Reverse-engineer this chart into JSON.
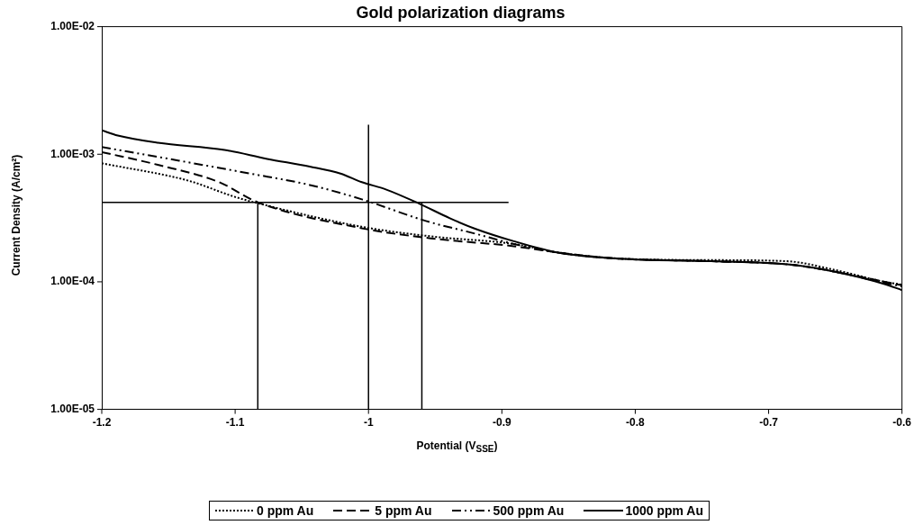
{
  "chart_data": {
    "type": "line",
    "title": "Gold polarization diagrams",
    "xlabel": "Potential (V$_{SSE}$)",
    "ylabel": "Current Density (A/cm²)",
    "log": "y",
    "grid": false,
    "legend": "bottom",
    "marker": "none",
    "xlim": [
      -1.2,
      -0.6
    ],
    "xticks": [
      -1.2,
      -1.1,
      -1,
      -0.9,
      -0.8,
      -0.7,
      -0.6
    ],
    "ylim": [
      1e-05,
      0.01
    ],
    "yticks": [
      {
        "value": 1e-05,
        "label": "1.00E-05"
      },
      {
        "value": 0.0001,
        "label": "1.00E-04"
      },
      {
        "value": 0.001,
        "label": "1.00E-03"
      },
      {
        "value": 0.01,
        "label": "1.00E-02"
      }
    ],
    "series": [
      {
        "name": "0 ppm Au",
        "color": "#000000",
        "line_style": "dotted",
        "x": [
          -1.2,
          -1.135,
          -1.101,
          -1.083,
          -1.005,
          -0.953,
          -0.891,
          -0.857,
          -0.812,
          -0.743,
          -0.686,
          -0.652,
          -0.613,
          -0.6
        ],
        "values": [
          0.00085,
          0.00062,
          0.000466,
          0.000413,
          0.00027,
          0.000227,
          0.000198,
          0.000169,
          0.000152,
          0.000148,
          0.000145,
          0.000125,
          0.0001,
          9.5e-05
        ]
      },
      {
        "name": "5 ppm Au",
        "color": "#000000",
        "line_style": "dashed",
        "x": [
          -1.2,
          -1.158,
          -1.112,
          -1.083,
          -1.005,
          -0.953,
          -0.891,
          -0.857,
          -0.812,
          -0.743,
          -0.686,
          -0.652,
          -0.613,
          -0.6
        ],
        "values": [
          0.00104,
          0.000826,
          0.000604,
          0.00042,
          0.000263,
          0.000219,
          0.00019,
          0.000169,
          0.000152,
          0.000145,
          0.000137,
          0.000121,
          0.0001,
          9.4e-05
        ]
      },
      {
        "name": "500 ppm Au",
        "color": "#000000",
        "line_style": "dashdot",
        "x": [
          -1.2,
          -1.142,
          -1.089,
          -1.044,
          -1.005,
          -0.957,
          -0.919,
          -0.891,
          -0.857,
          -0.812,
          -0.743,
          -0.686,
          -0.652,
          -0.613,
          -0.6
        ],
        "values": [
          0.00114,
          0.00089,
          0.000706,
          0.000574,
          0.000443,
          0.0003,
          0.000237,
          0.000198,
          0.000169,
          0.000152,
          0.000145,
          0.000137,
          0.000121,
          9.8e-05,
          9.2e-05
        ]
      },
      {
        "name": "1000 ppm Au",
        "color": "#000000",
        "line_style": "solid",
        "x": [
          -1.2,
          -1.188,
          -1.158,
          -1.108,
          -1.076,
          -1.044,
          -1.021,
          -1.005,
          -0.987,
          -0.962,
          -0.939,
          -0.921,
          -0.891,
          -0.857,
          -0.812,
          -0.743,
          -0.686,
          -0.652,
          -0.613,
          -0.6
        ],
        "values": [
          0.00154,
          0.0014,
          0.00123,
          0.00108,
          0.00092,
          0.0008,
          0.000706,
          0.000604,
          0.00053,
          0.00041,
          0.000315,
          0.000263,
          0.000208,
          0.000169,
          0.000152,
          0.000145,
          0.000137,
          0.000121,
          9.6e-05,
          8.6e-05
        ]
      },
      {
        "color": "#000000",
        "line_style": "solid",
        "x": [
          -1.2,
          -0.895
        ],
        "values": [
          0.00042,
          0.00042
        ]
      },
      {
        "color": "#000000",
        "line_style": "solid",
        "x": [
          -1.083,
          -1.083
        ],
        "values": [
          1e-05,
          0.00042
        ]
      },
      {
        "color": "#000000",
        "line_style": "solid",
        "x": [
          -0.96,
          -0.96
        ],
        "values": [
          1e-05,
          0.00042
        ]
      },
      {
        "color": "#000000",
        "line_style": "solid",
        "x": [
          -1,
          -1
        ],
        "values": [
          1e-05,
          0.0017
        ]
      }
    ]
  }
}
